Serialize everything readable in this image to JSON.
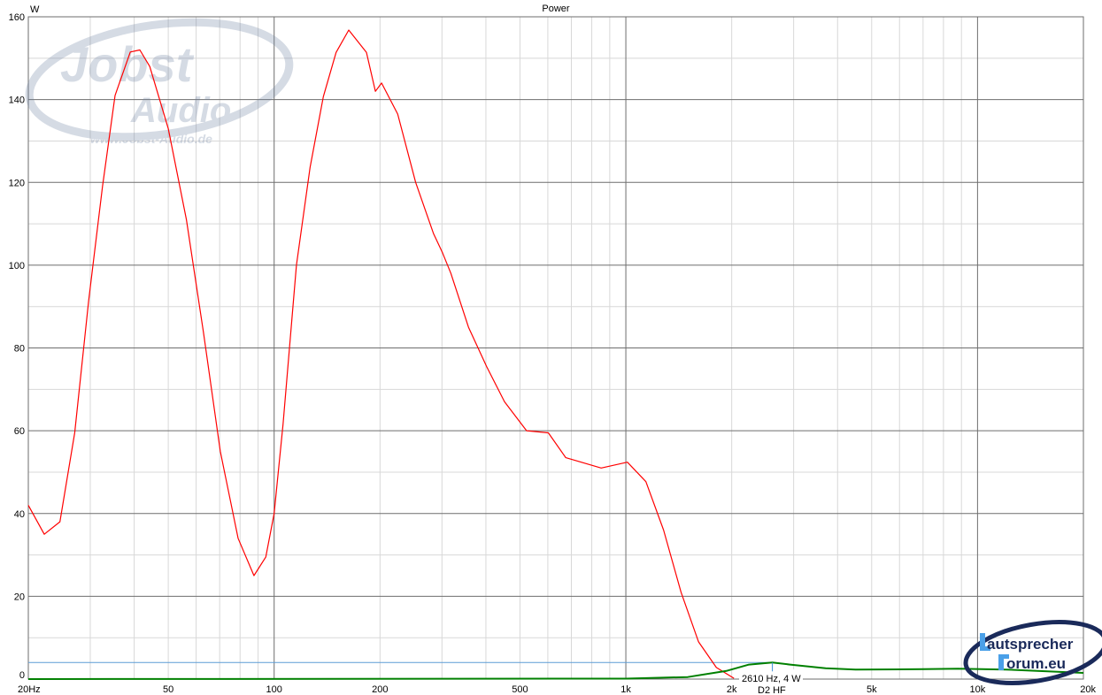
{
  "chart_data": {
    "type": "line",
    "title": "Power",
    "ylabel": "W",
    "xlabel": "",
    "x_scale": "log",
    "xlim": [
      20,
      20000
    ],
    "ylim": [
      0,
      160
    ],
    "grid": true,
    "x_ticks": [
      {
        "value": 20,
        "label": "20Hz"
      },
      {
        "value": 50,
        "label": "50"
      },
      {
        "value": 100,
        "label": "100"
      },
      {
        "value": 200,
        "label": "200"
      },
      {
        "value": 500,
        "label": "500"
      },
      {
        "value": 1000,
        "label": "1k"
      },
      {
        "value": 2000,
        "label": "2k"
      },
      {
        "value": 5000,
        "label": "5k"
      },
      {
        "value": 10000,
        "label": "10k"
      },
      {
        "value": 20000,
        "label": "20k"
      }
    ],
    "y_ticks": [
      {
        "value": 0,
        "label": "0"
      },
      {
        "value": 20,
        "label": "20"
      },
      {
        "value": 40,
        "label": "40"
      },
      {
        "value": 60,
        "label": "60"
      },
      {
        "value": 80,
        "label": "80"
      },
      {
        "value": 100,
        "label": "100"
      },
      {
        "value": 120,
        "label": "120"
      },
      {
        "value": 140,
        "label": "140"
      },
      {
        "value": 160,
        "label": "160"
      }
    ],
    "series": [
      {
        "color": "#ff0000",
        "x": [
          20,
          22.2,
          24.6,
          27.1,
          29.7,
          32.5,
          35.3,
          39,
          41.5,
          44.3,
          50,
          56.3,
          62.9,
          70.3,
          79,
          87.6,
          94.7,
          100,
          106,
          115.7,
          126.5,
          138,
          150,
          163,
          183,
          194,
          202,
          224.5,
          252.6,
          284,
          301,
          318,
          357,
          402,
          452,
          522,
          602,
          675,
          851,
          1010,
          1140,
          1280,
          1435,
          1610,
          1808,
          2030
        ],
        "y": [
          42,
          35,
          38,
          59.5,
          91.5,
          119,
          141,
          151.5,
          152,
          148,
          133,
          111,
          84,
          55,
          34,
          25,
          29.5,
          40,
          61.6,
          100,
          123.6,
          140.7,
          151.4,
          156.8,
          151.4,
          142,
          144,
          136.5,
          120,
          107.6,
          103,
          98,
          85,
          75.5,
          67,
          60,
          59.5,
          53.5,
          51,
          52.4,
          47.7,
          36,
          21,
          9,
          2.8,
          0.2
        ]
      },
      {
        "name": "D2 HF",
        "color": "#008000",
        "x": [
          20,
          1000,
          1500,
          1940,
          2240,
          2610,
          2930,
          3700,
          4500,
          7030,
          8800,
          12000,
          20000
        ],
        "y": [
          0,
          0.1,
          0.5,
          2,
          3.5,
          4,
          3.5,
          2.6,
          2.3,
          2.4,
          2.5,
          2.3,
          1.5
        ]
      }
    ],
    "reference_line": {
      "y": 4,
      "color": "#5b9bd5"
    },
    "annotation": {
      "x": 2610,
      "y": 4,
      "text": "2610 Hz, 4 W",
      "series_label": "D2 HF"
    },
    "watermarks": {
      "top_left": "Jobst Audio www.Jobst-Audio.de",
      "bottom_right": "Lautsprecher Forum.eu"
    }
  }
}
